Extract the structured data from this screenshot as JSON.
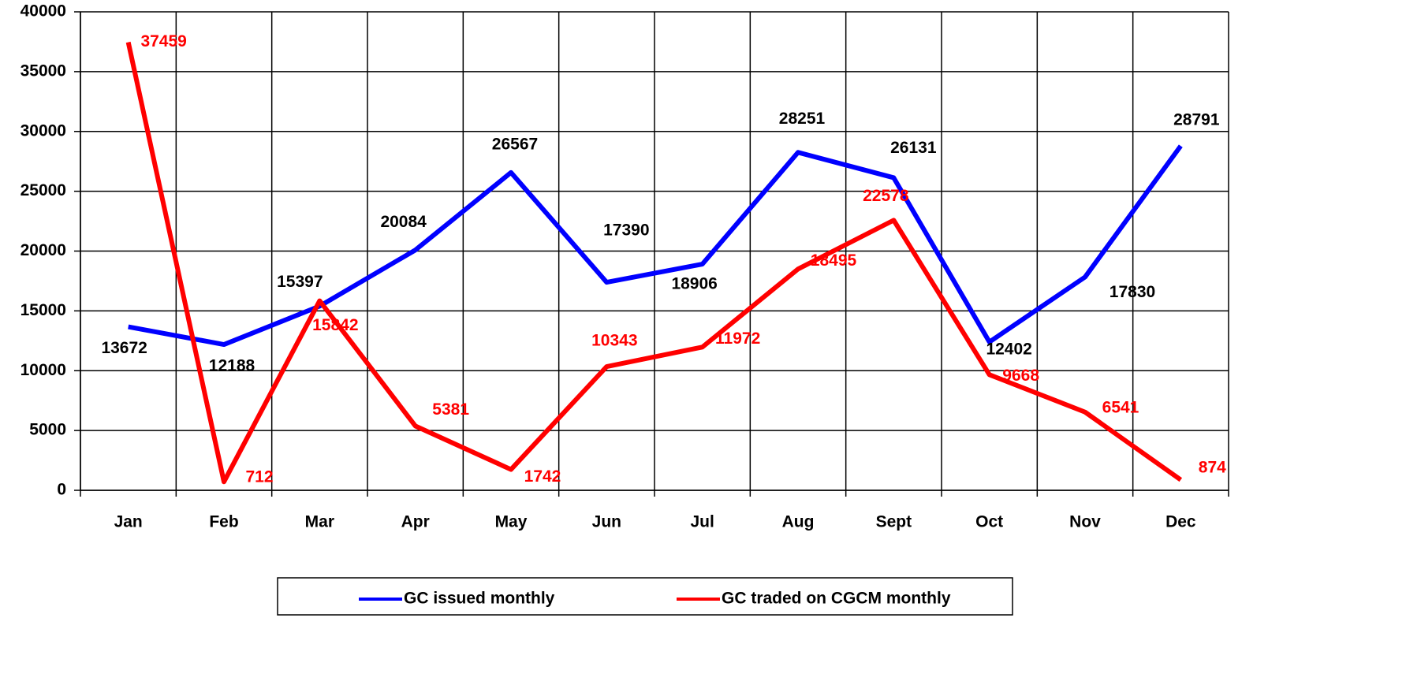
{
  "chart_data": {
    "type": "line",
    "categories": [
      "Jan",
      "Feb",
      "Mar",
      "Apr",
      "May",
      "Jun",
      "Jul",
      "Aug",
      "Sept",
      "Oct",
      "Nov",
      "Dec"
    ],
    "series": [
      {
        "name": "GC issued monthly",
        "color": "#0000ff",
        "label_color": "#000000",
        "values": [
          13672,
          12188,
          15397,
          20084,
          26567,
          17390,
          18906,
          28251,
          26131,
          12402,
          17830,
          28791
        ]
      },
      {
        "name": "GC traded on CGCM monthly",
        "color": "#ff0000",
        "label_color": "#ff0000",
        "values": [
          37459,
          712,
          15842,
          5381,
          1742,
          10343,
          11972,
          18495,
          22578,
          9668,
          6541,
          874
        ]
      }
    ],
    "ylim": [
      0,
      40000
    ],
    "yticks": [
      0,
      5000,
      10000,
      15000,
      20000,
      25000,
      30000,
      35000,
      40000
    ],
    "grid": true,
    "legend": "bottom"
  }
}
